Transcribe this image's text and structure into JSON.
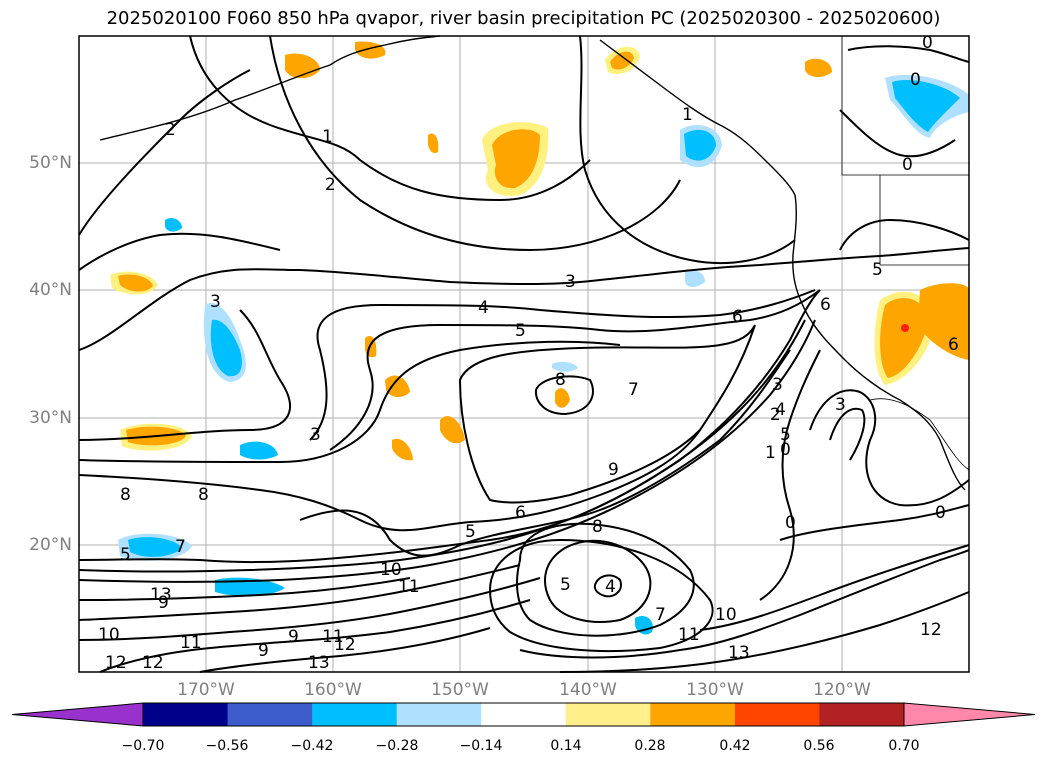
{
  "title": "2025020100 F060 850 hPa qvapor, river basin precipitation PC (2025020300 - 2025020600)",
  "map": {
    "lat_labels": [
      "50°N",
      "40°N",
      "30°N",
      "20°N"
    ],
    "lon_labels": [
      "170°W",
      "160°W",
      "150°W",
      "140°W",
      "130°W",
      "120°W"
    ],
    "contour_labels": [
      "1",
      "2",
      "2",
      "3",
      "3",
      "3",
      "3",
      "4",
      "5",
      "5",
      "6",
      "6",
      "6",
      "5",
      "7",
      "8",
      "8",
      "8",
      "7",
      "5",
      "9",
      "9",
      "8",
      "10",
      "11",
      "11",
      "11",
      "12",
      "13",
      "13",
      "12",
      "12",
      "10",
      "9",
      "9",
      "4",
      "5",
      "7",
      "10",
      "11",
      "13",
      "12",
      "0",
      "0",
      "0",
      "0",
      "0",
      "0",
      "1",
      "1",
      "2",
      "3",
      "4",
      "5",
      "6"
    ],
    "colors": {
      "map_border": "#000000",
      "grid": "#b0b0b0",
      "contour": "#000000",
      "orange": "#ffa500",
      "light_yellow": "#fff080",
      "light_blue": "#b0e0ff",
      "deep_sky_blue": "#00bfff",
      "red": "#ff2000"
    }
  },
  "colorbar": {
    "ticks": [
      "−0.70",
      "−0.56",
      "−0.42",
      "−0.28",
      "−0.14",
      "0.14",
      "0.28",
      "0.42",
      "0.56",
      "0.70"
    ],
    "colors": [
      "#9932cc",
      "#00008b",
      "#3c5ccc",
      "#00bfff",
      "#b0e0ff",
      "#ffffff",
      "#fff08c",
      "#ffa500",
      "#ff4500",
      "#b22222",
      "#ff88aa"
    ]
  }
}
